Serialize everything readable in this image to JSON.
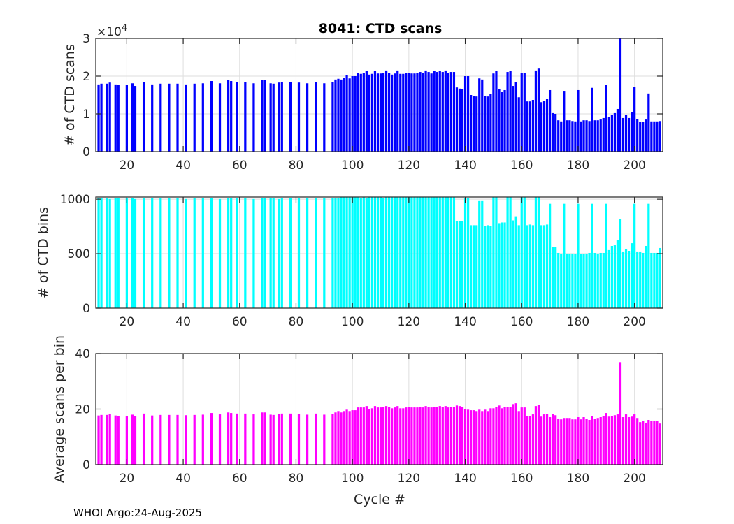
{
  "figure": {
    "title": "8041: CTD scans",
    "xlabel": "Cycle #",
    "footer": "WHOI Argo:24-Aug-2025"
  },
  "chart_data": [
    {
      "type": "bar",
      "name": "scans",
      "ylabel": "# of CTD scans",
      "color": "#0000ff",
      "xlim": [
        9,
        210
      ],
      "ylim": [
        0,
        30000
      ],
      "xticks": [
        20,
        40,
        60,
        80,
        100,
        120,
        140,
        160,
        180,
        200
      ],
      "yticks": [
        0,
        10000,
        20000,
        30000
      ],
      "ytick_labels": [
        "0",
        "1",
        "2",
        "3"
      ],
      "y_multiplier_base": "×10",
      "y_multiplier_exp": "4",
      "grid": true,
      "x": [
        10,
        11,
        13,
        14,
        16,
        17,
        20,
        22,
        23,
        26,
        29,
        32,
        35,
        38,
        41,
        44,
        47,
        50,
        53,
        56,
        57,
        59,
        62,
        65,
        68,
        69,
        71,
        72,
        74,
        75,
        78,
        81,
        84,
        87,
        90,
        93,
        94,
        95,
        96,
        97,
        98,
        99,
        100,
        101,
        102,
        103,
        104,
        105,
        106,
        107,
        108,
        109,
        110,
        111,
        112,
        113,
        114,
        115,
        116,
        117,
        118,
        119,
        120,
        121,
        122,
        123,
        124,
        125,
        126,
        127,
        128,
        129,
        130,
        131,
        132,
        133,
        134,
        135,
        136,
        137,
        138,
        139,
        140,
        141,
        142,
        143,
        144,
        145,
        146,
        147,
        148,
        149,
        150,
        151,
        152,
        153,
        154,
        155,
        156,
        157,
        158,
        159,
        160,
        161,
        162,
        163,
        164,
        165,
        166,
        167,
        168,
        169,
        170,
        171,
        172,
        173,
        174,
        175,
        176,
        177,
        178,
        179,
        180,
        181,
        182,
        183,
        184,
        185,
        186,
        187,
        188,
        189,
        190,
        191,
        192,
        193,
        194,
        195,
        196,
        197,
        198,
        199,
        200,
        201,
        202,
        203,
        204,
        205,
        206,
        207,
        208,
        209
      ],
      "values": [
        17800,
        18000,
        18000,
        18300,
        17800,
        17600,
        17600,
        18100,
        17400,
        18500,
        17800,
        18000,
        18000,
        18000,
        17800,
        18000,
        18100,
        18700,
        18100,
        18900,
        18700,
        18500,
        18500,
        18100,
        18900,
        18900,
        18100,
        18000,
        18300,
        18500,
        18500,
        18300,
        18100,
        18500,
        18100,
        18500,
        19100,
        19300,
        19100,
        19600,
        20200,
        19400,
        20000,
        20000,
        20900,
        20600,
        20900,
        21300,
        20400,
        20600,
        21300,
        20700,
        20700,
        20900,
        21500,
        20900,
        20400,
        20700,
        21500,
        20600,
        20600,
        20900,
        20900,
        20700,
        20700,
        20900,
        21100,
        20900,
        21500,
        21100,
        20700,
        21300,
        21100,
        21300,
        21100,
        21500,
        20900,
        21100,
        21100,
        17000,
        16700,
        16500,
        20000,
        20000,
        15000,
        14800,
        14600,
        19400,
        19100,
        14800,
        14600,
        15200,
        20700,
        21300,
        16500,
        15900,
        16300,
        21100,
        21300,
        17400,
        18500,
        14400,
        20900,
        20900,
        13300,
        13300,
        13700,
        21500,
        22000,
        13100,
        13500,
        13900,
        16300,
        10200,
        10000,
        8300,
        8000,
        16100,
        8300,
        8300,
        8100,
        8000,
        16300,
        8000,
        8300,
        8300,
        8100,
        16900,
        8300,
        8300,
        8500,
        8900,
        17600,
        9100,
        9800,
        10200,
        11300,
        30200,
        8900,
        9800,
        8900,
        10400,
        17200,
        8700,
        7800,
        7800,
        8500,
        15400,
        8000,
        8000,
        8000,
        8100
      ]
    },
    {
      "type": "bar",
      "name": "bins",
      "ylabel": "# of CTD bins",
      "color": "#00ffff",
      "xlim": [
        9,
        210
      ],
      "ylim": [
        0,
        1020
      ],
      "xticks": [
        20,
        40,
        60,
        80,
        100,
        120,
        140,
        160,
        180,
        200
      ],
      "yticks": [
        0,
        500,
        1000
      ],
      "ytick_labels": [
        "0",
        "500",
        "1000"
      ],
      "grid": true,
      "values": [
        1008,
        1008,
        1008,
        1002,
        1008,
        1008,
        1008,
        1008,
        1002,
        1008,
        1008,
        1008,
        1008,
        1008,
        1002,
        1008,
        1008,
        1008,
        1002,
        1008,
        1008,
        1008,
        1008,
        1002,
        1008,
        1008,
        1008,
        1008,
        1002,
        1008,
        1008,
        1008,
        1008,
        1008,
        1008,
        1008,
        1008,
        1008,
        1024,
        1024,
        1024,
        1024,
        1024,
        1024,
        1024,
        1008,
        1024,
        1008,
        1024,
        1024,
        1024,
        1024,
        1024,
        1008,
        1024,
        1024,
        1024,
        1024,
        1024,
        1024,
        1024,
        1024,
        1024,
        1024,
        1024,
        1024,
        1024,
        1024,
        1024,
        1024,
        1024,
        1024,
        1024,
        1024,
        1024,
        1024,
        1024,
        1024,
        1024,
        799,
        799,
        799,
        1008,
        1008,
        761,
        761,
        761,
        989,
        989,
        755,
        761,
        755,
        1024,
        1024,
        780,
        786,
        786,
        1024,
        1024,
        805,
        843,
        761,
        1024,
        1024,
        761,
        767,
        761,
        1024,
        1024,
        761,
        761,
        767,
        958,
        564,
        564,
        507,
        501,
        958,
        501,
        501,
        501,
        495,
        958,
        495,
        495,
        501,
        507,
        958,
        507,
        501,
        507,
        507,
        958,
        533,
        571,
        577,
        628,
        818,
        520,
        545,
        526,
        596,
        958,
        520,
        520,
        507,
        571,
        958,
        507,
        507,
        507,
        552
      ]
    },
    {
      "type": "bar",
      "name": "average",
      "ylabel": "Average scans per bin",
      "color": "#ff00ff",
      "xlim": [
        9,
        210
      ],
      "ylim": [
        0,
        40
      ],
      "xticks": [
        20,
        40,
        60,
        80,
        100,
        120,
        140,
        160,
        180,
        200
      ],
      "yticks": [
        0,
        20,
        40
      ],
      "ytick_labels": [
        "0",
        "20",
        "40"
      ],
      "grid": true,
      "values": [
        17.7,
        17.9,
        17.9,
        18.3,
        17.7,
        17.5,
        17.5,
        18.0,
        17.4,
        18.4,
        17.7,
        17.9,
        17.9,
        17.9,
        17.8,
        17.9,
        18.0,
        18.6,
        18.1,
        18.8,
        18.6,
        18.4,
        18.4,
        18.1,
        18.8,
        18.8,
        18.0,
        17.9,
        18.3,
        18.4,
        18.4,
        18.2,
        18.0,
        18.4,
        18.0,
        18.3,
        18.8,
        19.3,
        18.8,
        19.3,
        19.8,
        19.3,
        19.6,
        19.6,
        20.6,
        20.6,
        20.6,
        21.1,
        20.1,
        20.3,
        21.1,
        20.6,
        20.6,
        20.8,
        21.1,
        20.8,
        20.3,
        20.6,
        21.1,
        20.3,
        20.3,
        20.6,
        20.8,
        20.6,
        20.6,
        20.6,
        20.8,
        20.6,
        21.1,
        20.8,
        20.6,
        20.8,
        20.8,
        21.1,
        20.8,
        21.1,
        20.6,
        20.8,
        20.8,
        21.3,
        21.1,
        20.8,
        20.1,
        19.8,
        19.6,
        19.6,
        19.3,
        19.8,
        19.3,
        19.8,
        19.3,
        20.3,
        20.3,
        20.8,
        21.3,
        20.3,
        20.8,
        20.8,
        20.8,
        21.8,
        22.1,
        19.3,
        20.6,
        20.6,
        17.6,
        17.6,
        18.1,
        21.1,
        21.6,
        17.3,
        18.1,
        18.3,
        17.1,
        18.3,
        17.8,
        16.6,
        16.3,
        16.8,
        16.8,
        16.8,
        16.3,
        16.3,
        17.1,
        16.3,
        17.1,
        16.6,
        16.1,
        17.6,
        16.6,
        16.8,
        17.1,
        17.6,
        18.6,
        17.3,
        17.6,
        17.8,
        18.1,
        36.9,
        17.1,
        18.1,
        17.1,
        17.3,
        18.1,
        16.8,
        15.3,
        15.6,
        15.1,
        16.1,
        15.8,
        15.6,
        15.8,
        14.8
      ]
    }
  ]
}
